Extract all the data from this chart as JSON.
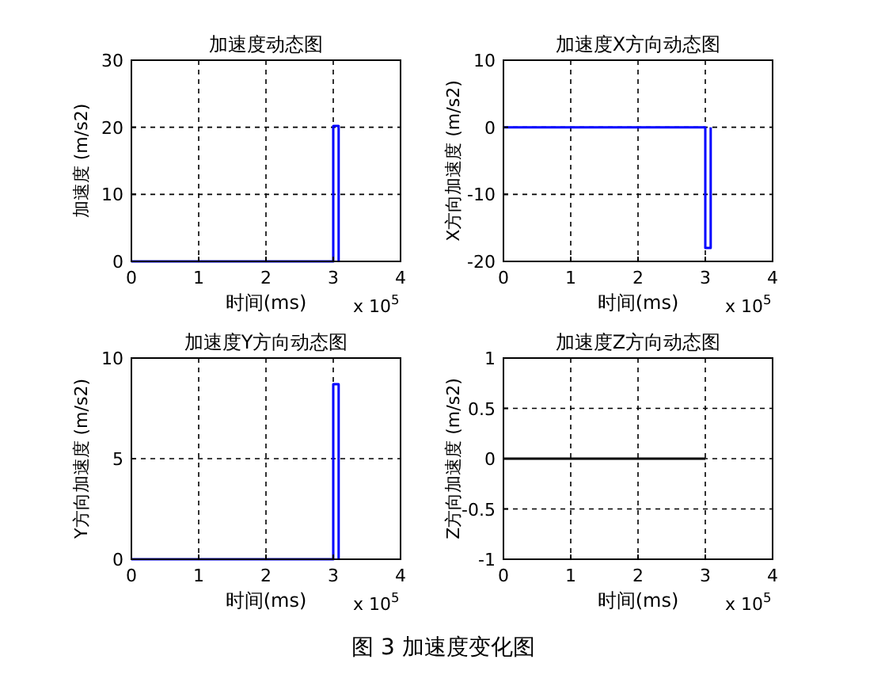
{
  "chart_data": [
    {
      "type": "line",
      "title": "加速度动态图",
      "xlabel": "时间(ms)",
      "ylabel": "加速度 (m/s2)",
      "xlim": [
        0,
        4
      ],
      "ylim": [
        0,
        30
      ],
      "xticks": [
        0,
        1,
        2,
        3,
        4
      ],
      "yticks": [
        0,
        10,
        20,
        30
      ],
      "grid": true,
      "annotations": [
        "x 10$^{5}$",
        "图 3 加速度变化图"
      ],
      "series": [
        {
          "color": "#0000ff",
          "x": [
            0,
            3,
            3,
            3.08,
            3.08
          ],
          "values": [
            0,
            0,
            20.2,
            20.2,
            0
          ]
        }
      ]
    },
    {
      "type": "line",
      "title": "加速度X方向动态图",
      "xlabel": "时间(ms)",
      "ylabel": "X方向加速度 (m/s2)",
      "xlim": [
        0,
        4
      ],
      "ylim": [
        -20,
        10
      ],
      "xticks": [
        0,
        1,
        2,
        3,
        4
      ],
      "yticks": [
        -20,
        -10,
        0,
        10
      ],
      "grid": true,
      "annotations": [
        "x 10$^{5}$"
      ],
      "series": [
        {
          "color": "#0000ff",
          "x": [
            0,
            3,
            3,
            3.08,
            3.08
          ],
          "values": [
            0,
            0,
            -18,
            -18,
            0
          ]
        }
      ]
    },
    {
      "type": "line",
      "title": "加速度Y方向动态图",
      "xlabel": "时间(ms)",
      "ylabel": "Y方向加速度 (m/s2)",
      "xlim": [
        0,
        4
      ],
      "ylim": [
        0,
        10
      ],
      "xticks": [
        0,
        1,
        2,
        3,
        4
      ],
      "yticks": [
        0,
        5,
        10
      ],
      "grid": true,
      "annotations": [
        "x 10$^{5}$"
      ],
      "series": [
        {
          "color": "#0000ff",
          "x": [
            0,
            3,
            3,
            3.08,
            3.08
          ],
          "values": [
            0,
            0,
            8.7,
            8.7,
            0
          ]
        }
      ]
    },
    {
      "type": "line",
      "title": "加速度Z方向动态图",
      "xlabel": "时间(ms)",
      "ylabel": "Z方向加速度 (m/s2)",
      "xlim": [
        0,
        4
      ],
      "ylim": [
        -1,
        1
      ],
      "xticks": [
        0,
        1,
        2,
        3,
        4
      ],
      "yticks": [
        -1,
        -0.5,
        0,
        0.5,
        1
      ],
      "grid": true,
      "annotations": [
        "x 10$^{5}$"
      ],
      "series": [
        {
          "color": "#000000",
          "x": [
            0,
            3
          ],
          "values": [
            0,
            0
          ]
        }
      ]
    }
  ]
}
